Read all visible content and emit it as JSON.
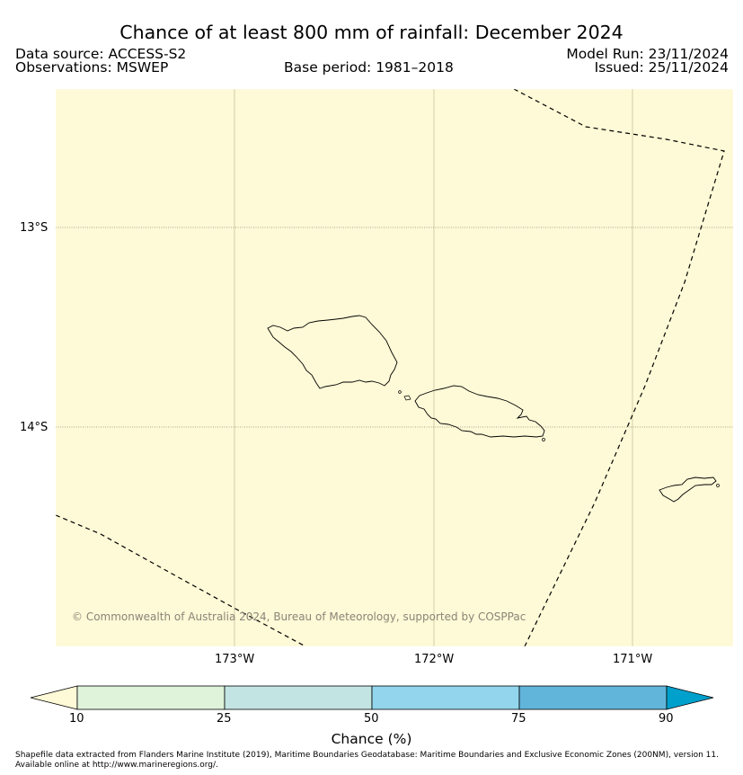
{
  "header": {
    "title": "Chance of at least 800 mm of rainfall: December 2024",
    "data_source": "Data source: ACCESS-S2",
    "observations": "Observations: MSWEP",
    "base_period": "Base period: 1981–2018",
    "model_run": "Model Run: 23/11/2024",
    "issued": "Issued: 25/11/2024"
  },
  "map": {
    "background_color": "#fef9d6",
    "lat_labels": [
      "13°S",
      "14°S"
    ],
    "lon_labels": [
      "173°W",
      "172°W",
      "171°W"
    ],
    "copyright": "© Commonwealth of Australia 2024, Bureau of Meteorology, supported by COSPPac",
    "features": [
      "savaii-island",
      "upolu-island",
      "tutuila-island",
      "eez-boundary-dashed"
    ]
  },
  "colorbar": {
    "title": "Chance (%)",
    "ticks": [
      "10",
      "25",
      "50",
      "75",
      "90"
    ],
    "colors": [
      "#fef9d6",
      "#dff3da",
      "#c2e4e3",
      "#93d5ec",
      "#61b5da",
      "#00a0cc"
    ]
  },
  "footer": {
    "line1": "Shapefile data extracted from Flanders Marine Institute (2019), Maritime Boundaries Geodatabase: Maritime Boundaries and Exclusive Economic Zones (200NM), version 11.",
    "line2": "Available online at http://www.marineregions.org/."
  }
}
